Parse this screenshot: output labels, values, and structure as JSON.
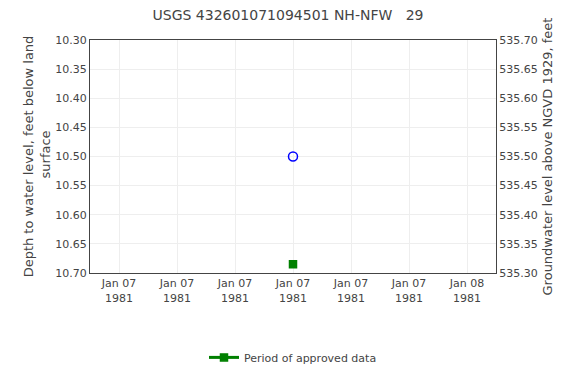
{
  "chart_data": {
    "type": "scatter",
    "title": "USGS 432601071094501 NH-NFW   29",
    "categories": [
      "Jan 07\n1981",
      "Jan 07\n1981",
      "Jan 07\n1981",
      "Jan 07\n1981",
      "Jan 07\n1981",
      "Jan 07\n1981",
      "Jan 08\n1981"
    ],
    "ylabel": "Depth to water level, feet below land\n surface",
    "y2label": "Groundwater level above NGVD 1929, feet",
    "series": [
      {
        "color": "#0000ff",
        "marker": "circle-open",
        "values": [
          null,
          null,
          null,
          10.5,
          null,
          null,
          null
        ]
      },
      {
        "name": "Period of approved data",
        "color": "#008000",
        "marker": "square",
        "values": [
          null,
          null,
          null,
          10.685,
          null,
          null,
          null
        ]
      }
    ],
    "ylim": [
      10.7,
      10.3
    ],
    "yticks": [
      {
        "value": 10.3,
        "label": "10.30"
      },
      10.35,
      {
        "value": 10.4,
        "label": "10.40"
      },
      10.45,
      {
        "value": 10.5,
        "label": "10.50"
      },
      10.55,
      {
        "value": 10.6,
        "label": "10.60"
      },
      10.65,
      {
        "value": 10.7,
        "label": "10.70"
      }
    ],
    "y2lim": [
      535.3,
      535.7
    ],
    "y2ticks": [
      {
        "value": 535.7,
        "label": "535.70"
      },
      535.65,
      {
        "value": 535.6,
        "label": "535.60"
      },
      535.55,
      {
        "value": 535.5,
        "label": "535.50"
      },
      535.45,
      {
        "value": 535.4,
        "label": "535.40"
      },
      535.35,
      {
        "value": 535.3,
        "label": "535.30"
      }
    ],
    "grid": true,
    "legend": "bottom"
  }
}
